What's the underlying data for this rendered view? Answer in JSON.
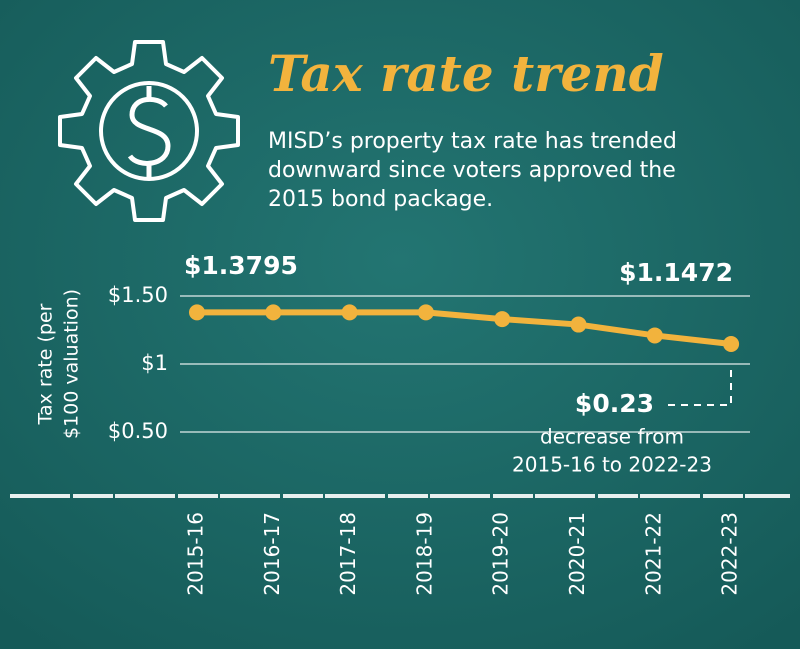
{
  "chart_data": {
    "type": "line",
    "title": "Tax rate trend",
    "subtitle": [
      "MISD’s property tax rate has trended",
      "downward since voters approved the",
      "2015 bond package."
    ],
    "y_label": [
      "Tax rate (per",
      "$100 valuation)"
    ],
    "categories": [
      "2015-16",
      "2016-17",
      "2017-18",
      "2018-19",
      "2019-20",
      "2020-21",
      "2021-22",
      "2022-23"
    ],
    "values": [
      1.3795,
      1.3795,
      1.3795,
      1.3795,
      1.33,
      1.29,
      1.21,
      1.1472
    ],
    "value_labels": [
      "$1.3795",
      null,
      null,
      null,
      null,
      null,
      null,
      "$1.1472"
    ],
    "color": "#f2b33d",
    "ylim": [
      0,
      1.8
    ],
    "yticks": [
      {
        "value": 1.5,
        "label": "$1.50"
      },
      {
        "value": 1,
        "label": "$1"
      },
      {
        "value": 0.5,
        "label": "$0.50"
      }
    ],
    "grid": true,
    "annotation": {
      "amount": "$0.23",
      "text": [
        "decrease from",
        "2015-16 to 2022-23"
      ]
    }
  }
}
